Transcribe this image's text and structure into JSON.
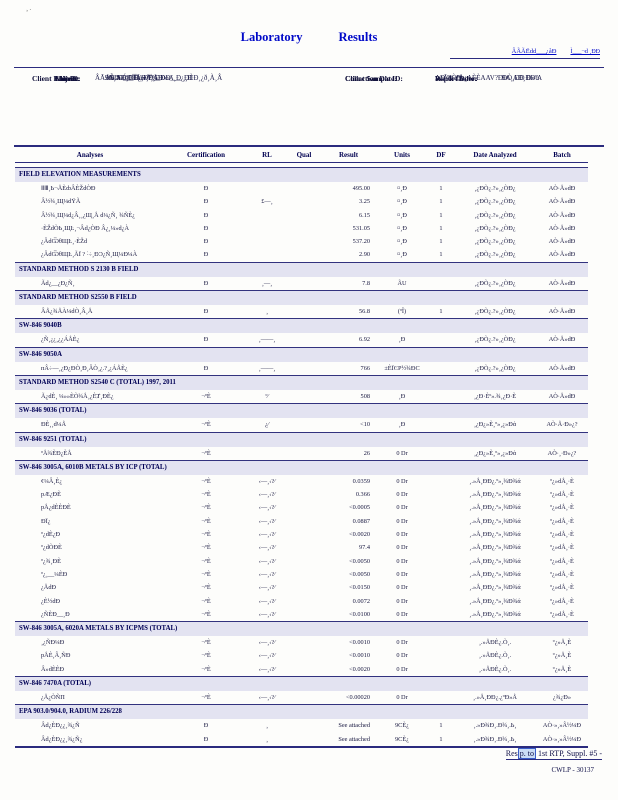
{
  "header": {
    "stray": "¸ .",
    "title_left": "Laboratory",
    "title_right": "Results",
    "link1": "ÂÃÃËdd___¿åÐ",
    "link2": "Ì___¬d ¸ÐÐ"
  },
  "info": {
    "client_label": "Client:",
    "client_value": "¬ÒDùÉDÏÐ Ð¸Ë¸ÐÐоȺ͸¸Ð ¸¸Ð",
    "work_order_label": "Work Order:",
    "work_order_value": "9A¸AÐ¸ÐÐά",
    "project_label": "Client Project:",
    "project_value": "ÂÃÅÈdÐ___Ë¿¸ÐÐ__ÐÐ___¿ÐÈÐ¸¿ð¸À¸Â",
    "report_date_label": "Report Date:",
    "report_date_value": "ÐÒ¸ÐÐ Ð»ºA",
    "lab_id_label": "Lab ID:",
    "lab_id_value": "9A¸AÐ¸ÐÐά»Å¸ÅÐ",
    "sample_id_label": "Client Sample ID:",
    "sample_id_value": "ÃdÒÐ",
    "matrix_label": "Matrix:",
    "matrix_value": "2% — #0 ÏÃ ÷ 2%",
    "collection_label": "Collection Date:",
    "collection_value": "AÐ º% ºÅ¿AÈÈAAV?Ð"
  },
  "table": {
    "headers": [
      "Analyses",
      "Certification",
      "RL",
      "Qual",
      "Result",
      "Units",
      "DF",
      "Date Analyzed",
      "Batch"
    ],
    "sections": [
      {
        "title": "FIELD ELEVATION MEASUREMENTS",
        "rows": [
          {
            "analysis": "ⅡⅢ¸Ь¬ÅÈȸÂÈŽdÒÐ",
            "cert": "Đ",
            "rl": "",
            "qual": "",
            "result": "495.00",
            "units": "¤¸Ð",
            "df": "1",
            "date": "¸¿ÐÒ¿.?»¸¿ÒÐ¿",
            "batch": "AÒ·Å»dÐ"
          },
          {
            "analysis": "Â½¾¸Щ¼dŸÃ",
            "cert": "Đ",
            "rl": "£—¸",
            "qual": "",
            "result": "3.25",
            "units": "¤¸Ð",
            "df": "1",
            "date": "¸¿ÐÒ¿.?»¸¿ÒÐ¿",
            "batch": "AÒ·Å»dÐ"
          },
          {
            "analysis": "Â½¾¸Щ¼d¿Â¸¸¿Щ¸Å  d¼¿Ñ¸ ¾ÑÈ¿",
            "cert": "Đ",
            "rl": "",
            "qual": "",
            "result": "6.15",
            "units": "¤¸Ð",
            "df": "1",
            "date": "¸¿ÐÒ¿.?»¸¿ÒÐ¿",
            "batch": "AÒ·Å»dÐ"
          },
          {
            "analysis": "·ÈŽdÒЬ¸ЩĿ¸¬Âd¿ÒÐ  Â¿¸¼»d¿À",
            "cert": "Đ",
            "rl": "",
            "qual": "",
            "result": "531.05",
            "units": "¤¸Ð",
            "df": "1",
            "date": "¸¿ÐÒ¿.?»¸¿ÒÐ¿",
            "batch": "AÒ·Å»dÐ"
          },
          {
            "analysis": "¿ÂdѾθЩĿ¸·ÈŽd",
            "cert": "Đ",
            "rl": "",
            "qual": "",
            "result": "537.20",
            "units": "¤¸Ð",
            "df": "1",
            "date": "¸¿ÐÒ¿.?»¸¿ÒÐ¿",
            "batch": "AÒ·Å»dÐ"
          },
          {
            "analysis": "¿ÂdѾθЩĿ¸ÃÏ ?  ˸÷¸ÐϽ¿Ñ¸Щ¼Ð¼À",
            "cert": "Đ",
            "rl": "",
            "qual": "",
            "result": "2.90",
            "units": "¤¸Ð",
            "df": "1",
            "date": "¸¿ÐÒ¿.?»¸¿ÒÐ¿",
            "batch": "AÒ·Å»dÐ"
          }
        ]
      },
      {
        "title": "STANDARD METHOD S 2130 B FIELD",
        "rows": [
          {
            "analysis": "Ãd¿__¿Ð¿Ñ¸",
            "cert": "Đ",
            "rl": "¸—¸",
            "qual": "",
            "result": "7.8",
            "units": "ÃU",
            "df": "",
            "date": "¸¿ÐÒ¿.?»¸¿ÒÐ¿",
            "batch": "AÒ·Å»dÐ"
          }
        ]
      },
      {
        "title": "STANDARD METHOD S2550 B FIELD",
        "rows": [
          {
            "analysis": "ÂÅ¿¾ÅÀ¼dÒ¸Â¸Å",
            "cert": "Đ",
            "rl": "¸",
            "qual": "",
            "result": "56.8",
            "units": "(ºÎ)",
            "df": "1",
            "date": "¸¿ÐÒ¿.?»¸¿ÒÐ¿",
            "batch": "AÒ·Å»dÐ"
          }
        ]
      },
      {
        "title": "SW-846  9040B",
        "rows": [
          {
            "analysis": "¿Ñ¸¿¿¸¿¿ÁÅÈ¿",
            "cert": "Đ",
            "rl": "¸——¸",
            "qual": "",
            "result": "6.92",
            "units": "¸Ð",
            "df": "",
            "date": "¸¿ÐÒ¿.?»¸¿ÒÐ¿",
            "batch": "AÒ·Å»dÐ"
          }
        ]
      },
      {
        "title": "SW-846  9050A",
        "rows": [
          {
            "analysis": "пÂ÷—¸¿Ð¿ÐÒ¸Ð¸ÂÒ¸¿.?¸¿ÁÅÈ¿",
            "cert": "Đ",
            "rl": "¸——¸",
            "qual": "",
            "result": "766",
            "units": "±ÈÏϾΡ½¾ÐС",
            "df": "",
            "date": "¸¿ÐÒ¿.?»¸¿ÒÐ¿",
            "batch": "AÒ·Å»dÐ"
          }
        ]
      },
      {
        "title": "STANDARD METHOD S2540 C (TOTAL)  1997, 2011",
        "rows": [
          {
            "analysis": "Ã¿dÈ¸ ¼»»ÈÒ¾Å¸¿ÈȾ¸ÐÈ¿",
            "cert": "¬ºÈ",
            "rl": "º⁄",
            "qual": "",
            "result": "508",
            "units": "¸Ð",
            "df": "",
            "date": "¸¿Ð·Èº».¾¸¿Ð·È",
            "batch": "AÒ·Å»dÐ"
          }
        ]
      },
      {
        "title": "SW-846  9036  (TOTAL)",
        "rows": [
          {
            "analysis": "ÐÈ¸¸d¼Å",
            "cert": "¬ºÈ",
            "rl": "¿⁄",
            "qual": "",
            "result": "<10",
            "units": "¸Ð",
            "df": "",
            "date": "¸¿Ð¿»È¸º»¸¿»Ðά",
            "batch": "AÒ·Å·Ð»¿?"
          }
        ]
      },
      {
        "title": "SW-846  9251  (TOTAL)",
        "rows": [
          {
            "analysis": "ºÅ¾ÈÐ¿ÈÅ",
            "cert": "¬ºÈ",
            "rl": "",
            "qual": "",
            "result": "26",
            "units": "0 Dr",
            "df": "",
            "date": "¸¿Ð¿»È¸º»¸¿»Ðά",
            "batch": "AÒ·¸·Ð»¿?"
          }
        ]
      },
      {
        "title": "SW-846  3005A,  6010B  METALS  BY  ICP  (TOTAL)",
        "rows": [
          {
            "analysis": "¢¼Â¸È¿",
            "cert": "¬ºÈ",
            "rl": "‹—¸‹?⁄",
            "qual": "",
            "result": "0.0359",
            "units": "0 Dr",
            "df": "",
            "date": "¸.»Å¸ÐÐ¿.º»¸¾Ð¾ά",
            "batch": "º¿»dÅ¸·È"
          },
          {
            "analysis": "pÆ¿ÐÈ",
            "cert": "¬ºÈ",
            "rl": "‹—¸‹?⁄",
            "qual": "",
            "result": "0.366",
            "units": "0 Dr",
            "df": "",
            "date": "¸.»Å¸ÐÐ¿.º»¸¾Ð¾ά",
            "batch": "º¿»dÅ¸·È"
          },
          {
            "analysis": "pÅ¿dÈÈÐÈ",
            "cert": "¬ºÈ",
            "rl": "‹—¸‹?⁄",
            "qual": "",
            "result": "<0.0005",
            "units": "0 Dr",
            "df": "",
            "date": "¸.»Å¸ÐÐ¿.º»¸¾Ð¾ά",
            "batch": "º¿»dÅ¸·È"
          },
          {
            "analysis": "ÐÏ¿",
            "cert": "¬ºÈ",
            "rl": "‹—¸‹?⁄",
            "qual": "",
            "result": "0.0887",
            "units": "0 Dr",
            "df": "",
            "date": "¸.»Å¸ÐÐ¿.º»¸¾Ð¾ά",
            "batch": "º¿»dÅ¸·È"
          },
          {
            "analysis": "º¿dÈ¿Ð",
            "cert": "¬ºÈ",
            "rl": "‹—¸‹?⁄",
            "qual": "",
            "result": "<0.0020",
            "units": "0 Dr",
            "df": "",
            "date": "¸.»Å¸ÐÐ¿.º»¸¾Ð¾ά",
            "batch": "º¿»dÅ¸·È"
          },
          {
            "analysis": "º¿dÒÐÈ",
            "cert": "¬ºÈ",
            "rl": "‹—¸‹?⁄",
            "qual": "",
            "result": "97.4",
            "units": "0 Dr",
            "df": "",
            "date": "¸.»Å¸ÐÐ¿.º»¸¾Ð¾ά",
            "batch": "º¿»dÅ¸·È"
          },
          {
            "analysis": "º¿¾¸ÐÈ",
            "cert": "¬ºÈ",
            "rl": "‹—¸‹?⁄",
            "qual": "",
            "result": "<0.0050",
            "units": "0 Dr",
            "df": "",
            "date": "¸.»Å¸ÐÐ¿.º»¸¾Ð¾ά",
            "batch": "º¿»dÅ¸·È"
          },
          {
            "analysis": "º¿¸__¼ÈÐ",
            "cert": "¬ºÈ",
            "rl": "‹—¸‹?⁄",
            "qual": "",
            "result": "<0.0050",
            "units": "0 Dr",
            "df": "",
            "date": "¸.»Å¸ÐÐ¿.º»¸¾Ð¾ά",
            "batch": "º¿»dÅ¸·È"
          },
          {
            "analysis": "¿ÅdÐ",
            "cert": "¬ºÈ",
            "rl": "‹—¸‹?⁄",
            "qual": "",
            "result": "<0.0150",
            "units": "0 Dr",
            "df": "",
            "date": "¸.»Å¸ÐÐ¿.º»¸¾Ð¾ά",
            "batch": "º¿»dÅ¸·È"
          },
          {
            "analysis": "¿È½dÐ",
            "cert": "¬ºÈ",
            "rl": "‹—¸‹?⁄",
            "qual": "",
            "result": "0.0072",
            "units": "0 Dr",
            "df": "",
            "date": "¸.»Å¸ÐÐ¿.º»¸¾Ð¾ά",
            "batch": "º¿»dÅ¸·È"
          },
          {
            "analysis": "¿ÑÈÐ__¸Ð",
            "cert": "¬ºÈ",
            "rl": "‹—¸‹?⁄",
            "qual": "",
            "result": "<0.0100",
            "units": "0 Dr",
            "df": "",
            "date": "¸.»Å¸ÐÐ¿.º»¸¾Ð¾ά",
            "batch": "º¿»dÅ¸·È"
          }
        ]
      },
      {
        "title": "SW-846  3005A,  6020A  METALS  BY  ICPMS  (TOTAL)",
        "rows": [
          {
            "analysis": "¸¿ÑÐ¼Ð",
            "cert": "¬ºÈ",
            "rl": "‹—¸‹?⁄",
            "qual": "",
            "result": "<0.0010",
            "units": "0 Dr",
            "df": "",
            "date": "¸.»ÅÐÈ¿.Ò¸.",
            "batch": "º¿»Å¸È"
          },
          {
            "analysis": "pÅÈ¸Â¸ÑÐ",
            "cert": "¬ºÈ",
            "rl": "‹—¸‹?⁄",
            "qual": "",
            "result": "<0.0010",
            "units": "0 Dr",
            "df": "",
            "date": "¸.»ÅÐÈ¿.Ò¸.",
            "batch": "º¿»Å¸È"
          },
          {
            "analysis": "Â»dÈÈÐ",
            "cert": "¬ºÈ",
            "rl": "‹—¸‹?⁄",
            "qual": "",
            "result": "<0.0020",
            "units": "0 Dr",
            "df": "",
            "date": "¸.»ÅÐÈ¿.Ò¸.",
            "batch": "º¿»Å¸È"
          }
        ]
      },
      {
        "title": "SW-846  7470A  (TOTAL)",
        "rows": [
          {
            "analysis": "¿Å¿ÒÑΠ",
            "cert": "¬ºÈ",
            "rl": "‹—¸‹?⁄",
            "qual": "",
            "result": "<0.00020",
            "units": "0 Dr",
            "df": "",
            "date": "¸.»Å¸ÐÐ¿.¿ºÐ»Å",
            "batch": "¿¾¿Ð»"
          }
        ]
      },
      {
        "title": "EPA  903.0/904.0,   RADIUM  226/228",
        "rows": [
          {
            "analysis": "Âd¿ÈÐ¿¿¸¾¿Ñ",
            "cert": "Đ",
            "rl": "¸",
            "qual": "",
            "result": "See  attached",
            "units": "9CÈ¿",
            "df": "1",
            "date": "¸.»Ð¾Ð¸.Ð¾¸.Ь¸",
            "batch": "AÒ·»¸»Â½¼Ð"
          },
          {
            "analysis": "Âd¿ÈÐ¿¿¸¾¿Ñ¿",
            "cert": "Đ",
            "rl": "¸",
            "qual": "",
            "result": "See  attached",
            "units": "9CÈ¿",
            "df": "1",
            "date": "¸.»Ð¾Ð¸.Ð¾¸.Ь¸",
            "batch": "AÒ·»¸»Â½¼Ð"
          }
        ]
      }
    ]
  },
  "footer": {
    "pre": "Res",
    "highlight": "p. to",
    "post": " 1st RTP, Suppl. #5 -",
    "doc_id": "CWLP - 30137"
  }
}
